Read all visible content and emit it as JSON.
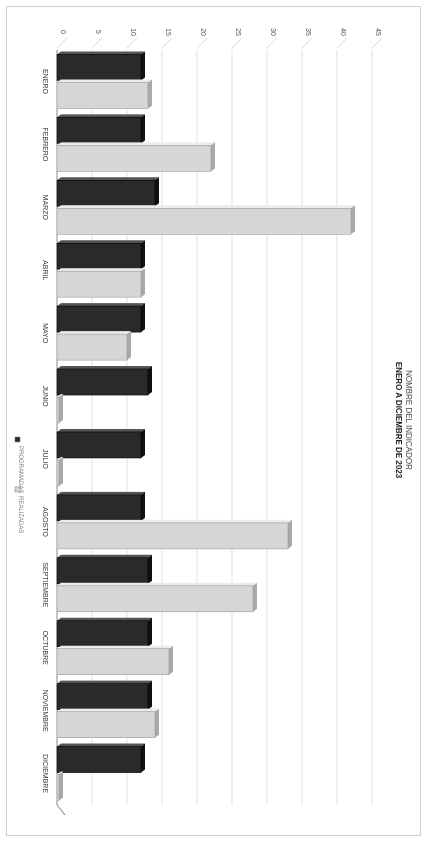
{
  "chart_data": {
    "type": "bar",
    "orientation": "horizontal-rotated",
    "title": "NOMBRE DEL INDICADOR",
    "subtitle": "ENERO A DICIEMBRE DE 2023",
    "categories": [
      "ENERO",
      "FEBRERO",
      "MARZO",
      "ABRIL",
      "MAYO",
      "JUNIO",
      "JULIO",
      "AGOSTO",
      "SEPTIEMBRE",
      "OCTUBRE",
      "NOVIEMBRE",
      "DICIEMBRE"
    ],
    "series": [
      {
        "name": "PROGRAMADAS",
        "color": "#2a2a2a",
        "values": [
          12,
          12,
          14,
          12,
          12,
          13,
          12,
          12,
          13,
          13,
          13,
          12
        ]
      },
      {
        "name": "REALIZADAS",
        "color": "#d6d6d6",
        "values": [
          13,
          22,
          42,
          12,
          10,
          0,
          0,
          33,
          28,
          16,
          14,
          0
        ]
      }
    ],
    "ylim": [
      0,
      45
    ],
    "yticks": [
      0,
      5,
      10,
      15,
      20,
      25,
      30,
      35,
      40,
      45
    ],
    "grid": true,
    "legend_position": "bottom"
  }
}
